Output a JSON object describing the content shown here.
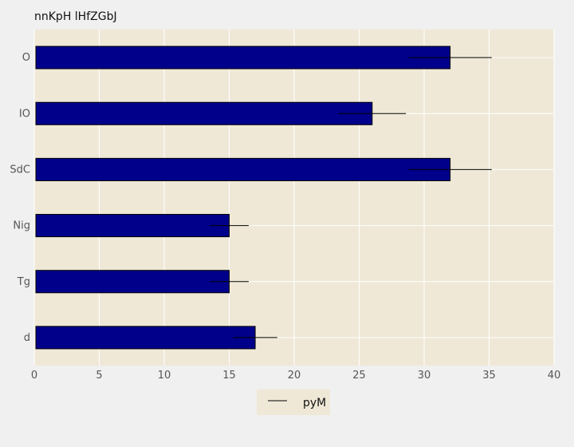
{
  "chart_data": {
    "type": "bar",
    "orientation": "horizontal",
    "title": "nnKpH lHfZGbJ",
    "xlabel": "",
    "ylabel": "",
    "categories": [
      "O",
      "IO",
      "SdC",
      "Nig",
      "Tg",
      "d"
    ],
    "series": [
      {
        "name": "pyM",
        "values": [
          32,
          26,
          32,
          15,
          15,
          17
        ],
        "errors": [
          3.2,
          2.6,
          3.2,
          1.5,
          1.5,
          1.7
        ]
      }
    ],
    "xlim": [
      0,
      40
    ],
    "xticks": [
      0,
      5,
      10,
      15,
      20,
      25,
      30,
      35,
      40
    ],
    "grid": true,
    "legend_position": "bottom-center",
    "colors": {
      "bar": "#00008b",
      "plot_background": "#efe8d7",
      "page_background": "#f0f0f0",
      "grid": "#ffffff",
      "error_bar": "#000000",
      "tick_label": "#555555"
    }
  }
}
